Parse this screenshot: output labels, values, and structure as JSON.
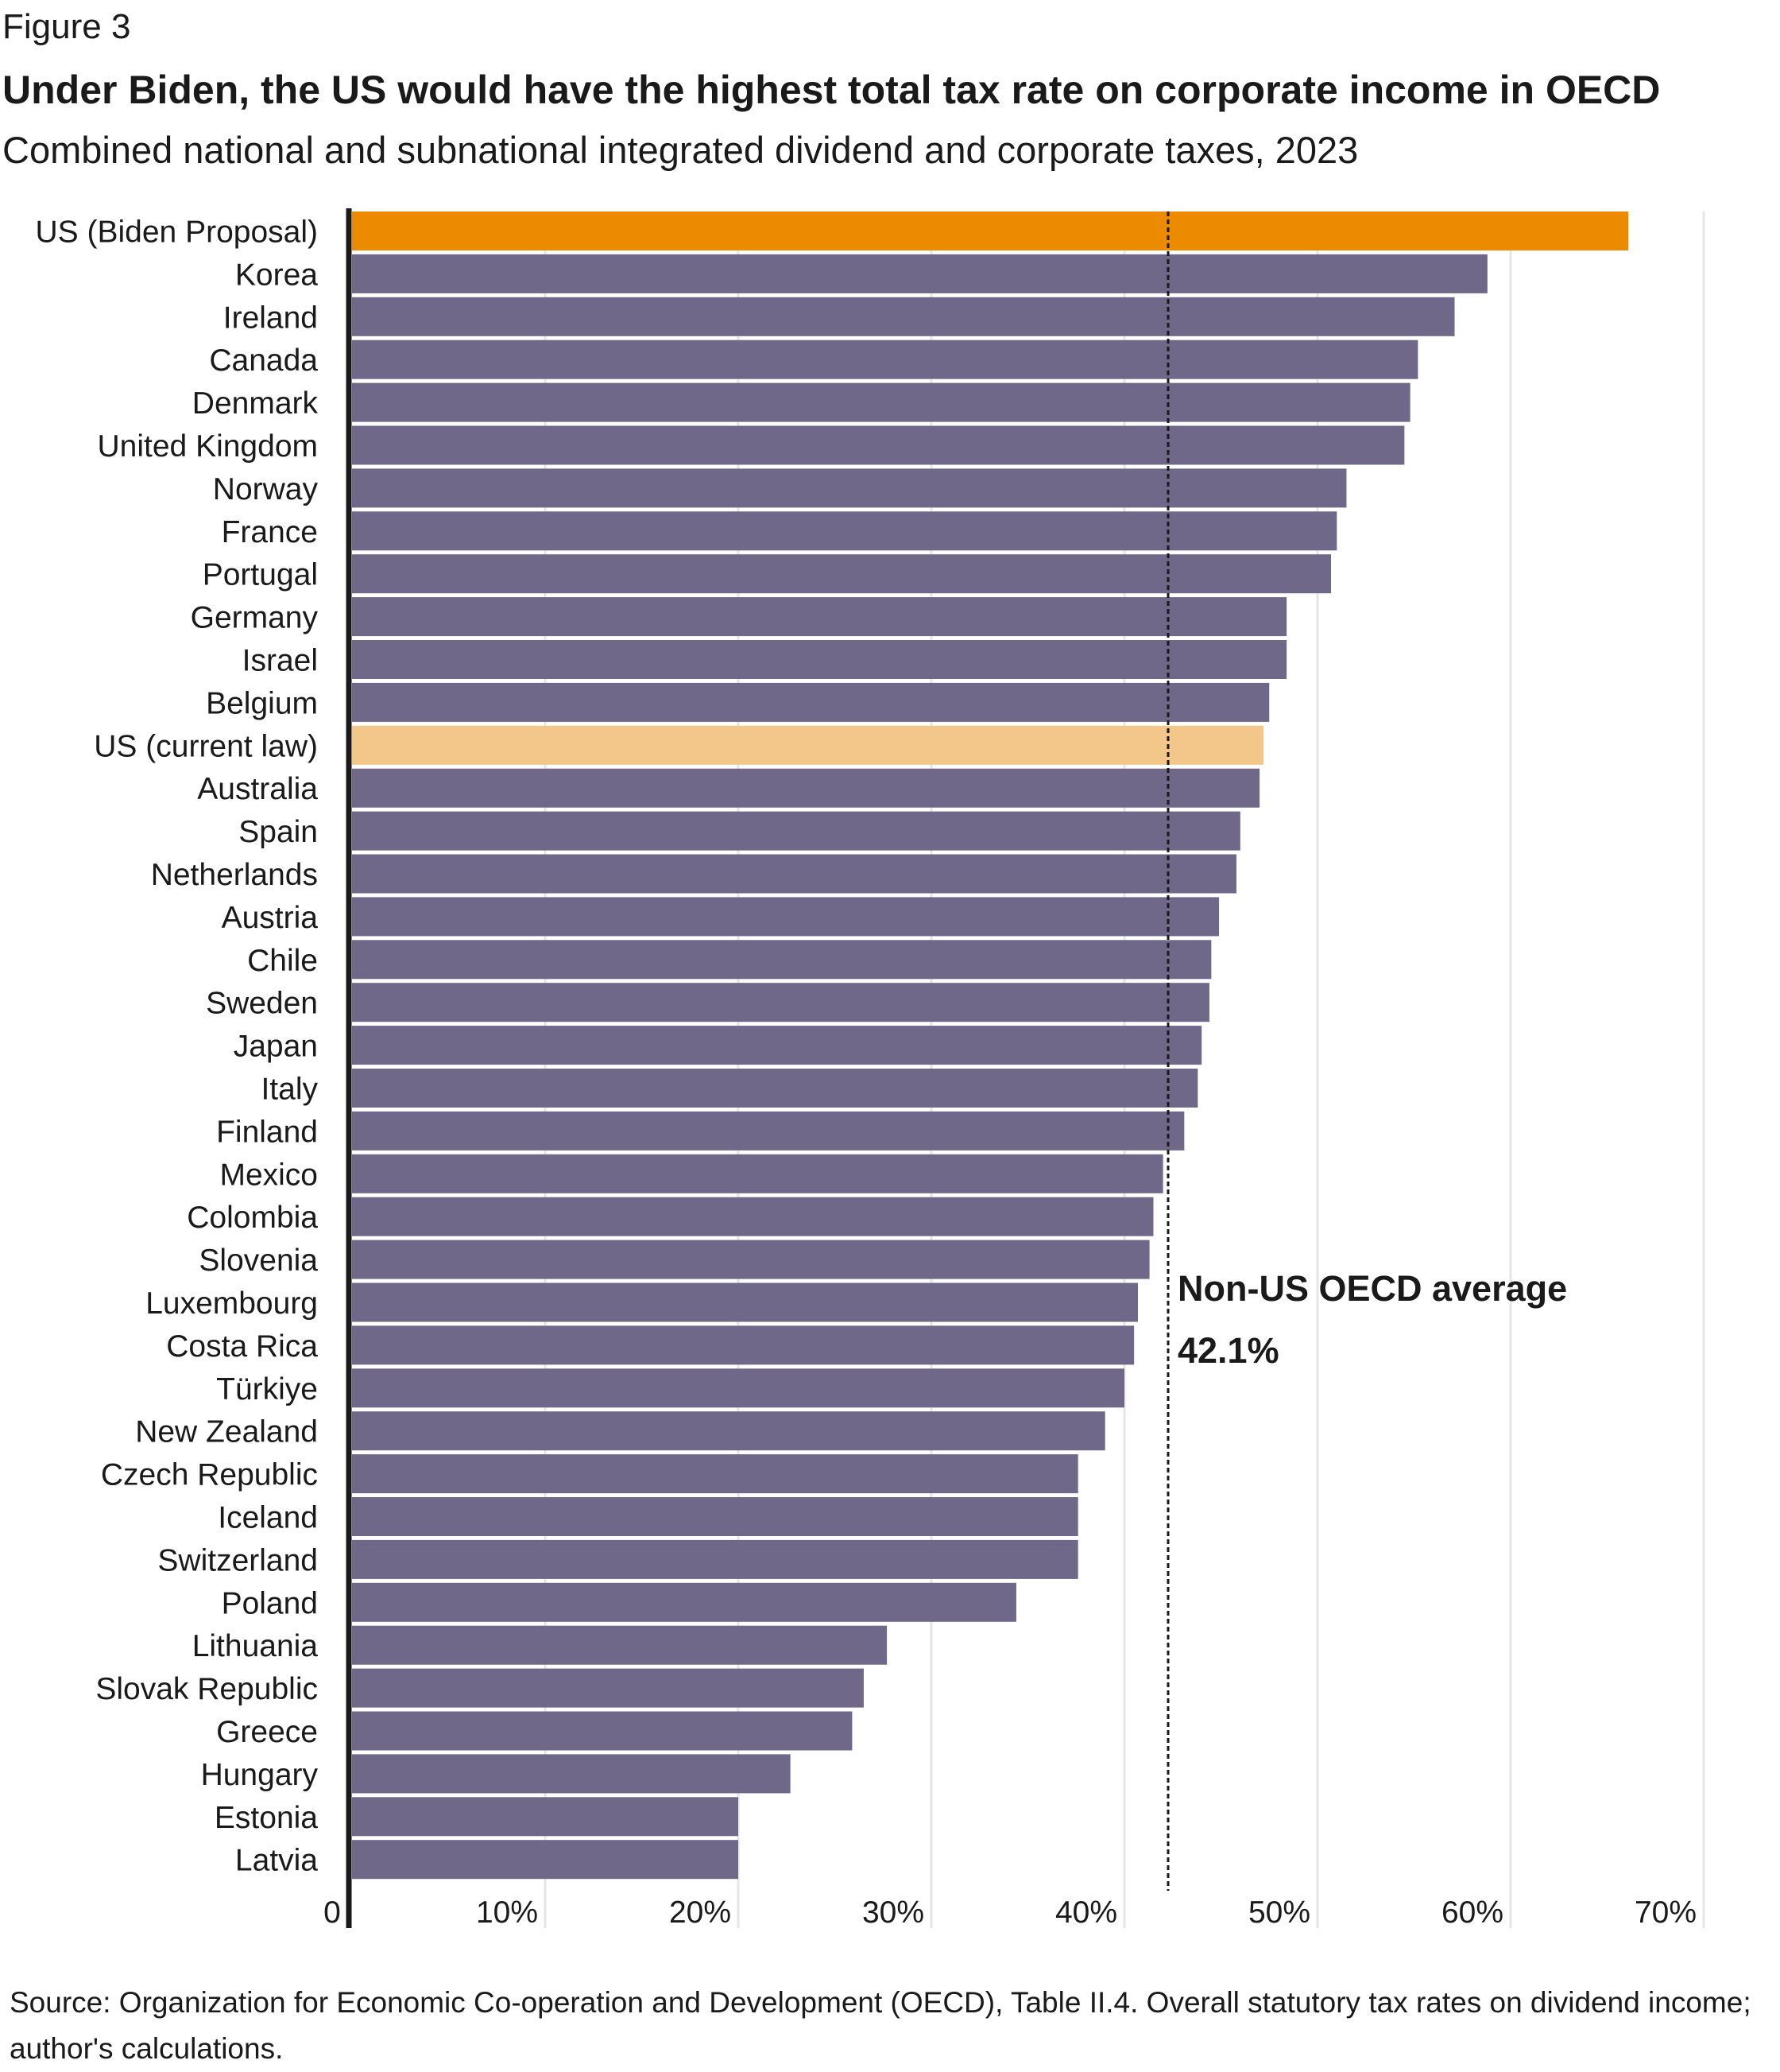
{
  "figure_label": "Figure 3",
  "title": "Under Biden, the US would have the highest total tax rate on corporate income in OECD",
  "subtitle": "Combined national and subnational integrated dividend and corporate taxes, 2023",
  "source": "Source: Organization for Economic Co-operation and Development (OECD), Table II.4. Overall statutory tax rates on dividend income; author's calculations.",
  "colors": {
    "default_bar": "#6f6889",
    "highlight_proposal": "#ed8b00",
    "highlight_current": "#f3c68a",
    "gridline": "#e6e6e6",
    "axis": "#1a1a1a"
  },
  "chart_data": {
    "type": "bar",
    "orientation": "horizontal",
    "xlim": [
      0,
      70
    ],
    "x_ticks": [
      0,
      10,
      20,
      30,
      40,
      50,
      60,
      70
    ],
    "x_tick_labels": [
      "0",
      "10%",
      "20%",
      "30%",
      "40%",
      "50%",
      "60%",
      "70%"
    ],
    "grid": true,
    "categories": [
      "US (Biden Proposal)",
      "Korea",
      "Ireland",
      "Canada",
      "Denmark",
      "United Kingdom",
      "Norway",
      "France",
      "Portugal",
      "Germany",
      "Israel",
      "Belgium",
      "US (current law)",
      "Australia",
      "Spain",
      "Netherlands",
      "Austria",
      "Chile",
      "Sweden",
      "Japan",
      "Italy",
      "Finland",
      "Mexico",
      "Colombia",
      "Slovenia",
      "Luxembourg",
      "Costa Rica",
      "Türkiye",
      "New Zealand",
      "Czech Republic",
      "Iceland",
      "Switzerland",
      "Poland",
      "Lithuania",
      "Slovak Republic",
      "Greece",
      "Hungary",
      "Estonia",
      "Latvia"
    ],
    "values": [
      66.1,
      58.8,
      57.1,
      55.2,
      54.8,
      54.5,
      51.5,
      51.0,
      50.7,
      48.4,
      48.4,
      47.5,
      47.2,
      47.0,
      46.0,
      45.8,
      44.9,
      44.5,
      44.4,
      44.0,
      43.8,
      43.1,
      42.0,
      41.5,
      41.3,
      40.7,
      40.5,
      40.0,
      39.0,
      37.6,
      37.6,
      37.6,
      34.4,
      27.7,
      26.5,
      25.9,
      22.7,
      20.0,
      20.0
    ],
    "highlights": {
      "US (Biden Proposal)": "proposal",
      "US (current law)": "current"
    },
    "reference_line": {
      "value": 42.1,
      "label_line1": "Non-US OECD average",
      "label_line2": "42.1%"
    }
  }
}
